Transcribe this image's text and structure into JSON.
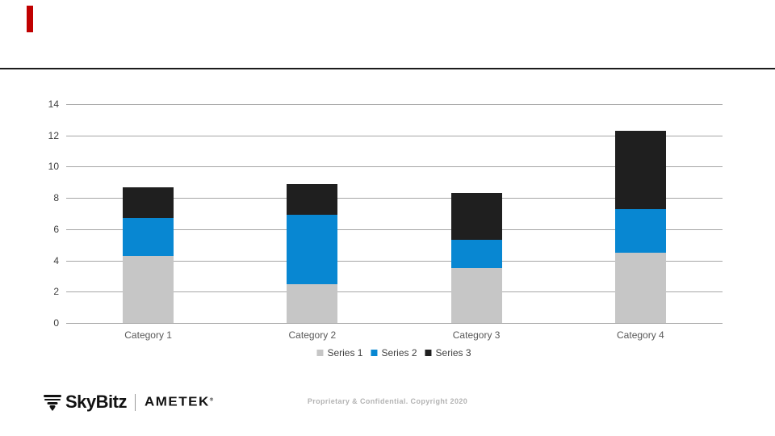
{
  "slide": {
    "accent_color": "#C00000",
    "footer": {
      "brand_primary": "SkyBitz",
      "brand_secondary": "AMETEK",
      "registered_mark": "®",
      "copyright": "Proprietary & Confidential. Copyright 2020"
    }
  },
  "chart_data": {
    "type": "bar",
    "stacked": true,
    "title": "",
    "xlabel": "",
    "ylabel": "",
    "categories": [
      "Category 1",
      "Category 2",
      "Category 3",
      "Category 4"
    ],
    "series": [
      {
        "name": "Series 1",
        "color": "#C6C6C6",
        "values": [
          4.3,
          2.5,
          3.5,
          4.5
        ]
      },
      {
        "name": "Series 2",
        "color": "#0887D2",
        "values": [
          2.4,
          4.4,
          1.8,
          2.8
        ]
      },
      {
        "name": "Series 3",
        "color": "#1F1F1F",
        "values": [
          2,
          2,
          3,
          5
        ]
      }
    ],
    "ylim": [
      0,
      14
    ],
    "yticks": [
      0,
      2,
      4,
      6,
      8,
      10,
      12,
      14
    ],
    "grid": true,
    "gridline_color": "#a6a6a6",
    "legend_position": "bottom"
  }
}
